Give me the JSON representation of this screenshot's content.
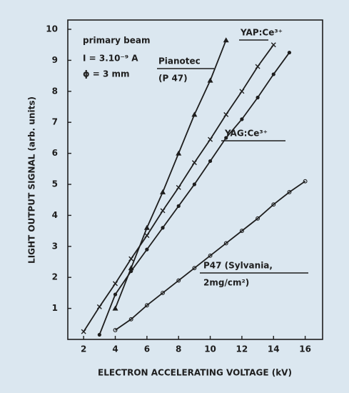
{
  "chart_data": {
    "type": "line",
    "xlabel": "ELECTRON ACCELERATING VOLTAGE (kV)",
    "ylabel": "LIGHT OUTPUT SIGNAL (arb. units)",
    "annotations": [
      "primary beam",
      "I = 3.10⁻⁹ A",
      "ϕ = 3 mm"
    ],
    "xlim": [
      1,
      17.1
    ],
    "xticks": [
      2,
      4,
      6,
      8,
      10,
      12,
      14,
      16
    ],
    "ylim": [
      0,
      10.3
    ],
    "yticks": [
      1,
      2,
      3,
      4,
      5,
      6,
      7,
      8,
      9,
      10
    ],
    "series": [
      {
        "name": "Pianotec (P 47)",
        "label_lines": [
          "Pianotec",
          "(P 47)"
        ],
        "marker": "triangle",
        "color": "#1e1e1e",
        "x": [
          4,
          5,
          6,
          7,
          8,
          9,
          10,
          11
        ],
        "values": [
          1.0,
          2.3,
          3.6,
          4.75,
          6.0,
          7.25,
          8.35,
          9.65
        ]
      },
      {
        "name": "YAP:Ce³⁺",
        "label_lines": [
          "YAP:Ce³⁺"
        ],
        "marker": "cross",
        "color": "#1e1e1e",
        "x": [
          2,
          3,
          4,
          5,
          6,
          7,
          8,
          9,
          10,
          11,
          12,
          13,
          14
        ],
        "values": [
          0.25,
          1.05,
          1.8,
          2.6,
          3.35,
          4.15,
          4.9,
          5.7,
          6.45,
          7.25,
          8.0,
          8.8,
          9.5
        ]
      },
      {
        "name": "YAG:Ce³⁺",
        "label_lines": [
          "YAG:Ce³⁺"
        ],
        "marker": "dot",
        "color": "#1e1e1e",
        "x": [
          3,
          4,
          5,
          6,
          7,
          8,
          9,
          10,
          11,
          12,
          13,
          14,
          15
        ],
        "values": [
          0.15,
          1.45,
          2.2,
          2.9,
          3.6,
          4.3,
          5.0,
          5.75,
          6.5,
          7.1,
          7.8,
          8.55,
          9.25
        ]
      },
      {
        "name": "P47 (Sylvania, 2mg/cm²)",
        "label_lines": [
          "P47 (Sylvania,",
          "2mg/cm²)"
        ],
        "marker": "circle",
        "color": "#1e1e1e",
        "x": [
          4,
          5,
          6,
          7,
          8,
          9,
          10,
          11,
          12,
          13,
          14,
          15,
          16
        ],
        "values": [
          0.3,
          0.65,
          1.1,
          1.5,
          1.9,
          2.3,
          2.7,
          3.1,
          3.5,
          3.9,
          4.35,
          4.75,
          5.1
        ]
      }
    ]
  }
}
